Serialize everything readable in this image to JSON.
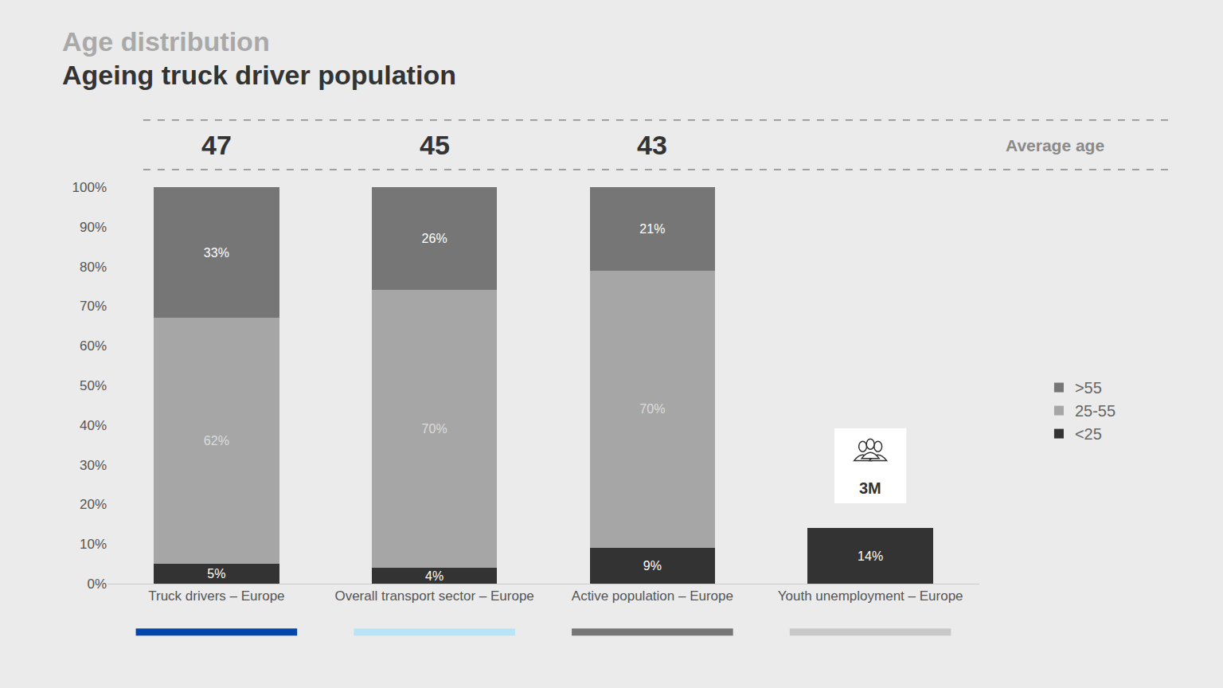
{
  "chart_data": {
    "type": "bar",
    "title": "Age distribution",
    "subtitle": "Ageing truck driver population",
    "categories": [
      "Truck drivers – Europe",
      "Overall transport sector – Europe",
      "Active population – Europe",
      "Youth unemployment – Europe"
    ],
    "series": [
      {
        "name": "<25",
        "color": "#333333",
        "values": [
          5,
          4,
          9,
          14
        ],
        "value_labels": [
          "5%",
          "4%",
          "9%",
          "14%"
        ]
      },
      {
        "name": "25-55",
        "color": "#a6a6a6",
        "values": [
          62,
          70,
          70,
          null
        ],
        "value_labels": [
          "62%",
          "70%",
          "70%",
          null
        ]
      },
      {
        "name": ">55",
        "color": "#767676",
        "values": [
          33,
          26,
          21,
          null
        ],
        "value_labels": [
          "33%",
          "26%",
          "21%",
          null
        ]
      }
    ],
    "average_age": {
      "label": "Average age",
      "values": [
        47,
        45,
        43,
        null
      ]
    },
    "annotations": [
      {
        "category": "Youth unemployment – Europe",
        "text": "3M"
      }
    ],
    "stacked": true,
    "data_labels": true,
    "legend": "right",
    "grid": false,
    "ylim": [
      0,
      100
    ],
    "yticks": [
      {
        "value": 0,
        "label": "0%"
      },
      {
        "value": 10,
        "label": "10%"
      },
      {
        "value": 20,
        "label": "20%"
      },
      {
        "value": 30,
        "label": "30%"
      },
      {
        "value": 40,
        "label": "40%"
      },
      {
        "value": 50,
        "label": "50%"
      },
      {
        "value": 60,
        "label": "60%"
      },
      {
        "value": 70,
        "label": "70%"
      },
      {
        "value": 80,
        "label": "80%"
      },
      {
        "value": 90,
        "label": "90%"
      },
      {
        "value": 100,
        "label": "100%"
      }
    ]
  }
}
